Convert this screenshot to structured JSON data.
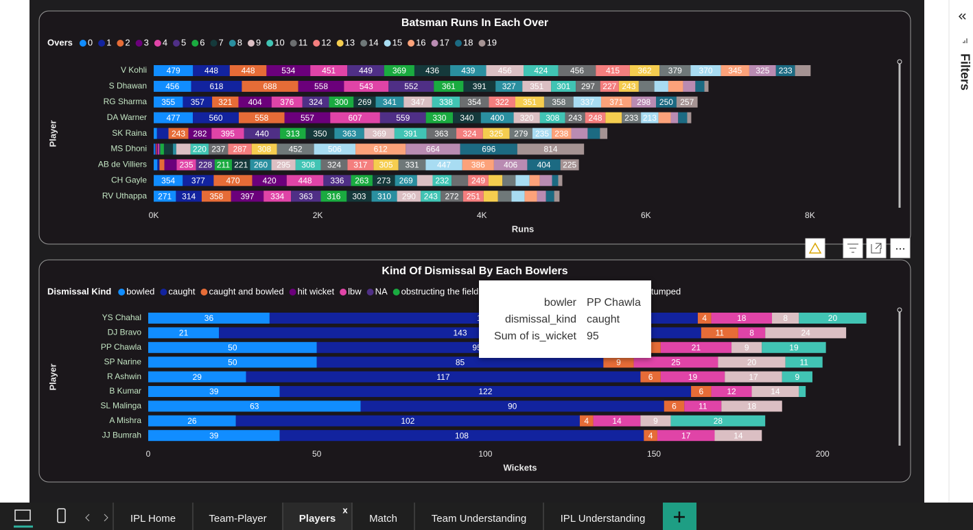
{
  "chart_data": [
    {
      "type": "bar",
      "orientation": "horizontal",
      "stacked": true,
      "title": "Batsman Runs In Each Over",
      "legend_title": "Overs",
      "xlabel": "Runs",
      "ylabel": "Player",
      "categories": [
        "V Kohli",
        "S Dhawan",
        "RG Sharma",
        "DA Warner",
        "SK Raina",
        "MS Dhoni",
        "AB de Villiers",
        "CH Gayle",
        "RV Uthappa"
      ],
      "xlim": [
        0,
        8900
      ],
      "xticks": [
        {
          "value": 0,
          "label": "0K"
        },
        {
          "value": 2000,
          "label": "2K"
        },
        {
          "value": 4000,
          "label": "4K"
        },
        {
          "value": 6000,
          "label": "6K"
        },
        {
          "value": 8000,
          "label": "8K"
        }
      ],
      "series": [
        {
          "name": "0",
          "color": "#118DFF",
          "values": [
            479,
            456,
            355,
            477,
            40,
            15,
            45,
            354,
            271
          ]
        },
        {
          "name": "1",
          "color": "#12239E",
          "values": [
            448,
            618,
            357,
            560,
            140,
            10,
            25,
            377,
            314
          ]
        },
        {
          "name": "2",
          "color": "#E66C37",
          "values": [
            448,
            688,
            321,
            558,
            243,
            10,
            60,
            470,
            358
          ]
        },
        {
          "name": "3",
          "color": "#6B007B",
          "values": [
            534,
            558,
            404,
            557,
            282,
            15,
            150,
            420,
            397
          ]
        },
        {
          "name": "4",
          "color": "#E044A7",
          "values": [
            451,
            543,
            376,
            607,
            395,
            15,
            235,
            448,
            334
          ]
        },
        {
          "name": "5",
          "color": "#4F2F86",
          "values": [
            449,
            552,
            324,
            559,
            440,
            15,
            228,
            336,
            363
          ]
        },
        {
          "name": "6",
          "color": "#1AAB40",
          "values": [
            369,
            361,
            300,
            330,
            313,
            45,
            211,
            263,
            316
          ]
        },
        {
          "name": "7",
          "color": "#15393B",
          "values": [
            436,
            391,
            269,
            340,
            350,
            110,
            221,
            273,
            303
          ]
        },
        {
          "name": "8",
          "color": "#2A8FA0",
          "values": [
            439,
            327,
            341,
            400,
            363,
            40,
            260,
            269,
            310
          ]
        },
        {
          "name": "9",
          "color": "#DBBFC3",
          "values": [
            456,
            351,
            347,
            320,
            369,
            175,
            295,
            190,
            290
          ]
        },
        {
          "name": "10",
          "color": "#41C4B4",
          "values": [
            424,
            301,
            338,
            308,
            391,
            220,
            308,
            232,
            243
          ]
        },
        {
          "name": "11",
          "color": "#6C6E70",
          "values": [
            456,
            297,
            354,
            243,
            363,
            237,
            324,
            200,
            272
          ]
        },
        {
          "name": "12",
          "color": "#F47E7E",
          "values": [
            415,
            227,
            322,
            248,
            324,
            287,
            317,
            249,
            251
          ]
        },
        {
          "name": "13",
          "color": "#F5CD4F",
          "values": [
            362,
            243,
            351,
            200,
            325,
            308,
            305,
            170,
            175
          ]
        },
        {
          "name": "14",
          "color": "#6F7879",
          "values": [
            379,
            190,
            358,
            233,
            279,
            452,
            331,
            160,
            165
          ]
        },
        {
          "name": "15",
          "color": "#A8DCF2",
          "values": [
            370,
            170,
            337,
            213,
            235,
            506,
            447,
            170,
            160
          ]
        },
        {
          "name": "16",
          "color": "#FCA27A",
          "values": [
            345,
            180,
            371,
            150,
            238,
            612,
            386,
            125,
            150
          ]
        },
        {
          "name": "17",
          "color": "#B98BB2",
          "values": [
            325,
            150,
            298,
            90,
            200,
            664,
            406,
            150,
            110
          ]
        },
        {
          "name": "18",
          "color": "#1C6A82",
          "values": [
            233,
            110,
            250,
            110,
            150,
            696,
            404,
            75,
            100
          ]
        },
        {
          "name": "19",
          "color": "#A59393",
          "values": [
            190,
            50,
            257,
            50,
            90,
            814,
            225,
            50,
            65
          ]
        }
      ]
    },
    {
      "type": "bar",
      "orientation": "horizontal",
      "stacked": true,
      "title": "Kind Of Dismissal By Each Bowlers",
      "legend_title": "Dismissal Kind",
      "xlabel": "Wickets",
      "ylabel": "Player",
      "categories": [
        "YS Chahal",
        "DJ Bravo",
        "PP Chawla",
        "SP Narine",
        "R Ashwin",
        "B Kumar",
        "SL Malinga",
        "A Mishra",
        "JJ Bumrah"
      ],
      "xlim": [
        0,
        220
      ],
      "xticks": [
        0,
        50,
        100,
        150,
        200
      ],
      "series": [
        {
          "name": "bowled",
          "color": "#118DFF",
          "values": [
            36,
            21,
            50,
            50,
            29,
            39,
            63,
            26,
            39
          ]
        },
        {
          "name": "caught",
          "color": "#12239E",
          "values": [
            127,
            143,
            95,
            85,
            117,
            122,
            90,
            102,
            108
          ]
        },
        {
          "name": "caught and bowled",
          "color": "#E66C37",
          "values": [
            4,
            11,
            7,
            9,
            6,
            6,
            6,
            4,
            4
          ]
        },
        {
          "name": "hit wicket",
          "color": "#6B007B",
          "values": [
            0,
            0,
            0,
            0,
            0,
            0,
            0,
            0,
            0
          ]
        },
        {
          "name": "lbw",
          "color": "#E044A7",
          "values": [
            18,
            8,
            21,
            25,
            19,
            12,
            11,
            14,
            17
          ]
        },
        {
          "name": "NA",
          "color": "#4F2F86",
          "values": [
            0,
            0,
            0,
            0,
            0,
            0,
            0,
            0,
            0
          ]
        },
        {
          "name": "obstructing the field",
          "color": "#1AAB40",
          "values": [
            0,
            0,
            0,
            0,
            0,
            0,
            0,
            0,
            0
          ]
        },
        {
          "name": null,
          "color": "#DBBFC3",
          "values": [
            8,
            24,
            9,
            20,
            17,
            14,
            18,
            9,
            14
          ]
        },
        {
          "name": "stumped",
          "color": "#41C4B4",
          "values": [
            20,
            0,
            19,
            11,
            9,
            2,
            0,
            28,
            0
          ]
        }
      ]
    }
  ],
  "tooltip": {
    "chart": 1,
    "series": 1,
    "category": 2,
    "labels": [
      "bowler",
      "dismissal_kind",
      "Sum of is_wicket"
    ]
  },
  "ui": {
    "filters": "Filters",
    "close": "x",
    "active_tab": 2,
    "tabs": [
      "IPL Home",
      "Team-Player",
      "Players",
      "Match",
      "Team Understanding",
      "IPL Understanding"
    ]
  }
}
